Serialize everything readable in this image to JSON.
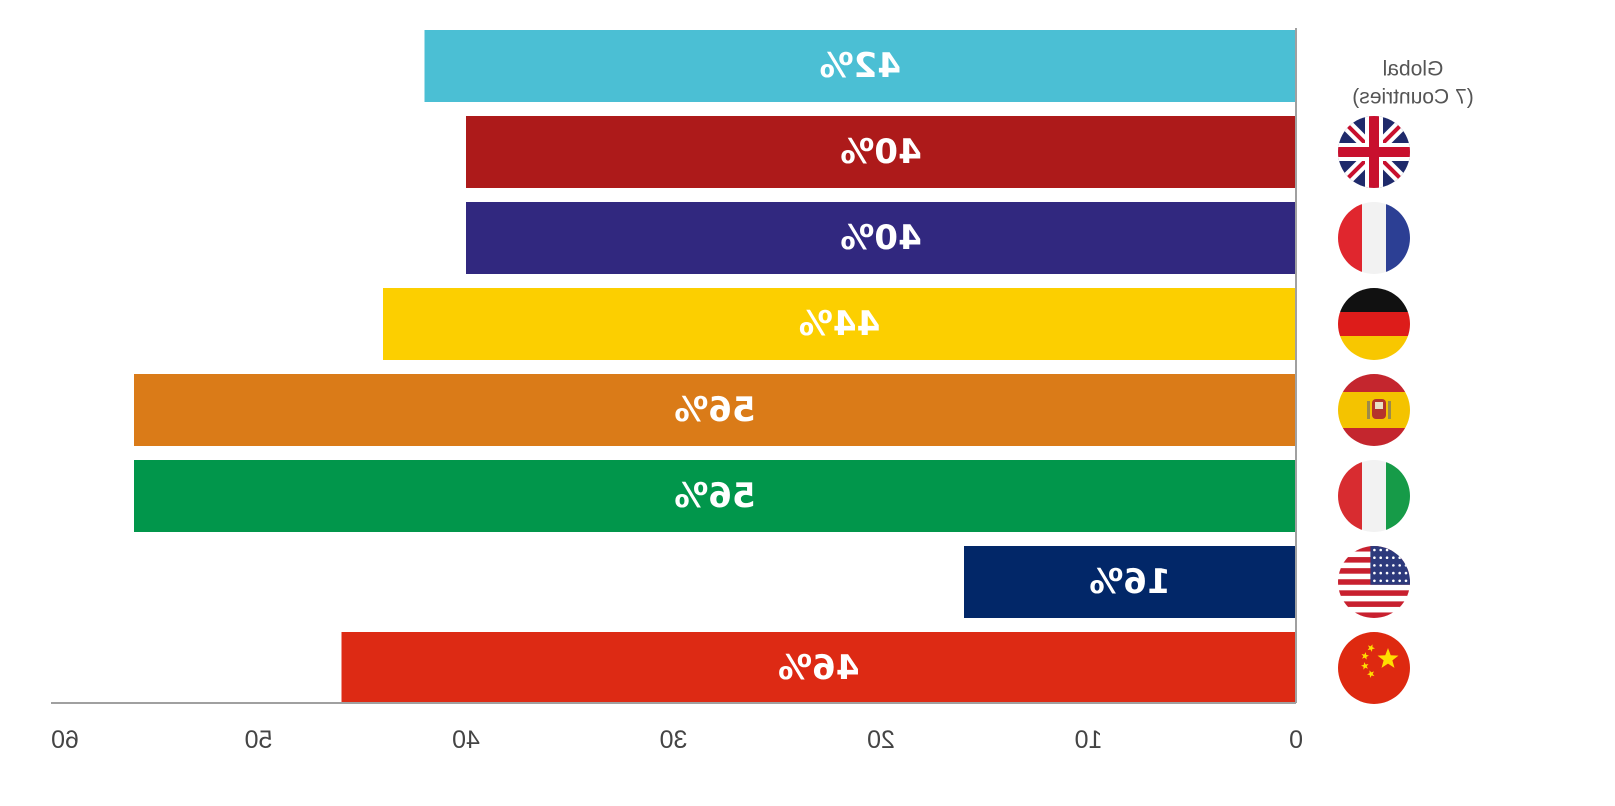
{
  "chart_data": {
    "type": "bar",
    "orientation": "horizontal",
    "mirrored": true,
    "xlim": [
      0,
      60
    ],
    "x_ticks": [
      0,
      10,
      20,
      30,
      40,
      50,
      60
    ],
    "x_tick_labels": [
      "0",
      "10",
      "20",
      "30",
      "40",
      "50",
      "60"
    ],
    "grid": false,
    "categories": [
      {
        "label": "Global",
        "sublabel": "(7 Countries)",
        "flag": "globe-icon",
        "value": 42,
        "value_label": "42%",
        "color": "#4bbfd4"
      },
      {
        "label": "",
        "flag": "uk-flag-icon",
        "value": 40,
        "value_label": "40%",
        "color": "#ad1a1a"
      },
      {
        "label": "",
        "flag": "france-flag-icon",
        "value": 40,
        "value_label": "40%",
        "color": "#31287f"
      },
      {
        "label": "",
        "flag": "germany-flag-icon",
        "value": 44,
        "value_label": "44%",
        "color": "#fccf00"
      },
      {
        "label": "",
        "flag": "spain-flag-icon",
        "value": 56,
        "value_label": "56%",
        "color": "#da7b18"
      },
      {
        "label": "",
        "flag": "italy-flag-icon",
        "value": 56,
        "value_label": "56%",
        "color": "#01964b"
      },
      {
        "label": "",
        "flag": "usa-flag-icon",
        "value": 16,
        "value_label": "16%",
        "color": "#022768"
      },
      {
        "label": "",
        "flag": "china-flag-icon",
        "value": 46,
        "value_label": "46%",
        "color": "#dd2a14"
      }
    ],
    "legend": {
      "line1": "Global",
      "line2": "(7 Countries)"
    }
  }
}
